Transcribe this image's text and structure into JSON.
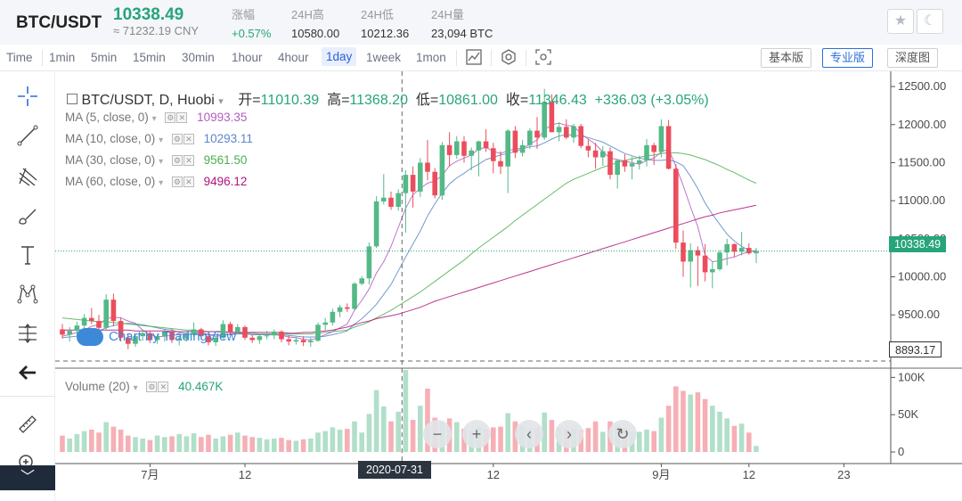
{
  "header": {
    "pair": "BTC/USDT",
    "price": "10338.49",
    "cny": "≈ 71232.19 CNY",
    "stats": [
      {
        "label": "涨幅",
        "value": "+0.57%",
        "up": true
      },
      {
        "label": "24H高",
        "value": "10580.00",
        "up": false
      },
      {
        "label": "24H低",
        "value": "10212.36",
        "up": false
      },
      {
        "label": "24H量",
        "value": "23,094 BTC",
        "up": false
      }
    ],
    "favorite_icon": "star-icon",
    "theme_icon": "moon-icon"
  },
  "toolbar": {
    "timeframes": [
      "Time",
      "1min",
      "5min",
      "15min",
      "30min",
      "1hour",
      "4hour",
      "1day",
      "1week",
      "1mon"
    ],
    "active_timeframe": "1day",
    "icons": [
      "indicators-icon",
      "settings-icon",
      "screenshot-icon"
    ],
    "views": [
      "基本版",
      "专业版",
      "深度图"
    ],
    "active_view": "专业版"
  },
  "tools": [
    "crosshair-icon",
    "trend-line-icon",
    "pitchfork-icon",
    "brush-icon",
    "text-icon",
    "pattern-icon",
    "measure-icon",
    "back-arrow-icon",
    "ruler-icon",
    "zoom-icon"
  ],
  "legend": {
    "title": "BTC/USDT, D, Huobi",
    "open_label": "开=",
    "open": "11010.39",
    "high_label": "高=",
    "high": "11368.20",
    "low_label": "低=",
    "low": "10861.00",
    "close_label": "收=",
    "close": "11346.43",
    "change": "+336.03 (+3.05%)",
    "ma": [
      {
        "label": "MA (5, close, 0)",
        "value": "10993.35",
        "color": "#b05fc0"
      },
      {
        "label": "MA (10, close, 0)",
        "value": "10293.11",
        "color": "#5b86c8"
      },
      {
        "label": "MA (30, close, 0)",
        "value": "9561.50",
        "color": "#4caf50"
      },
      {
        "label": "MA (60, close, 0)",
        "value": "9496.12",
        "color": "#b0147a"
      }
    ],
    "volume_label": "Volume (20)",
    "volume_value": "40.467K"
  },
  "watermark": "Chart by TradingView",
  "last_price_tag": "10338.49",
  "crosshair_price_tag": "8893.17",
  "crosshair_date_tag": "2020-07-31",
  "nav_buttons": [
    "zoom-out-icon",
    "zoom-in-icon",
    "scroll-left-icon",
    "scroll-right-icon",
    "reset-icon"
  ],
  "colors": {
    "up": "#53b987",
    "down": "#eb4d5c",
    "accent": "#2a6fdb"
  },
  "chart_data": {
    "type": "candlestick",
    "price_axis": {
      "ticks": [
        12500,
        12000,
        11500,
        11000,
        10500,
        10000,
        9500
      ],
      "labels": [
        "12500.00",
        "12000.00",
        "11500.00",
        "11000.00",
        "10500.00",
        "10000.00",
        "9500.00"
      ],
      "range": [
        8800,
        12700
      ]
    },
    "volume_axis": {
      "ticks": [
        100,
        50,
        0
      ],
      "labels": [
        "100K",
        "50K",
        "0"
      ],
      "range": [
        0,
        110
      ]
    },
    "date_axis": {
      "labels": [
        "7月",
        "12",
        "12",
        "9月",
        "12",
        "23"
      ]
    },
    "candles": [
      [
        9310,
        9380,
        9190,
        9240,
        22
      ],
      [
        9240,
        9340,
        9150,
        9290,
        18
      ],
      [
        9290,
        9410,
        9220,
        9360,
        24
      ],
      [
        9360,
        9510,
        9290,
        9460,
        28
      ],
      [
        9460,
        9590,
        9380,
        9420,
        30
      ],
      [
        9420,
        9500,
        9280,
        9330,
        26
      ],
      [
        9330,
        9770,
        9300,
        9700,
        40
      ],
      [
        9700,
        9780,
        9350,
        9420,
        34
      ],
      [
        9420,
        9470,
        9150,
        9200,
        30
      ],
      [
        9200,
        9260,
        9050,
        9120,
        22
      ],
      [
        9120,
        9250,
        9080,
        9220,
        20
      ],
      [
        9220,
        9300,
        9160,
        9260,
        18
      ],
      [
        9260,
        9290,
        9130,
        9170,
        16
      ],
      [
        9170,
        9250,
        9120,
        9220,
        22
      ],
      [
        9220,
        9320,
        9150,
        9280,
        20
      ],
      [
        9280,
        9320,
        9130,
        9170,
        21
      ],
      [
        9170,
        9230,
        9100,
        9190,
        24
      ],
      [
        9190,
        9280,
        9150,
        9240,
        21
      ],
      [
        9240,
        9400,
        9210,
        9310,
        25
      ],
      [
        9310,
        9330,
        9180,
        9220,
        20
      ],
      [
        9220,
        9260,
        9100,
        9140,
        23
      ],
      [
        9140,
        9220,
        9090,
        9200,
        18
      ],
      [
        9200,
        9430,
        9180,
        9380,
        21
      ],
      [
        9380,
        9410,
        9230,
        9270,
        23
      ],
      [
        9270,
        9380,
        9250,
        9340,
        26
      ],
      [
        9340,
        9360,
        9170,
        9200,
        22
      ],
      [
        9200,
        9240,
        9130,
        9170,
        20
      ],
      [
        9170,
        9250,
        9120,
        9220,
        19
      ],
      [
        9220,
        9290,
        9180,
        9230,
        17
      ],
      [
        9230,
        9310,
        9180,
        9280,
        18
      ],
      [
        9280,
        9300,
        9140,
        9180,
        19
      ],
      [
        9180,
        9230,
        9100,
        9150,
        16
      ],
      [
        9150,
        9210,
        9110,
        9170,
        15
      ],
      [
        9170,
        9220,
        9090,
        9140,
        17
      ],
      [
        9140,
        9200,
        9080,
        9160,
        18
      ],
      [
        9160,
        9400,
        9150,
        9370,
        26
      ],
      [
        9370,
        9460,
        9300,
        9400,
        28
      ],
      [
        9400,
        9580,
        9360,
        9540,
        33
      ],
      [
        9540,
        9630,
        9470,
        9600,
        30
      ],
      [
        9600,
        9650,
        9540,
        9580,
        31
      ],
      [
        9580,
        9930,
        9560,
        9910,
        41
      ],
      [
        9910,
        10010,
        9890,
        9980,
        26
      ],
      [
        9980,
        10450,
        9900,
        10400,
        51
      ],
      [
        10400,
        11060,
        10380,
        10990,
        83
      ],
      [
        10990,
        11350,
        10950,
        11040,
        61
      ],
      [
        11040,
        11120,
        10880,
        10920,
        41
      ],
      [
        10920,
        11150,
        10870,
        11100,
        54
      ],
      [
        11100,
        11400,
        10580,
        11340,
        110
      ],
      [
        11340,
        11450,
        10910,
        11120,
        43
      ],
      [
        11120,
        11560,
        11050,
        11500,
        62
      ],
      [
        11500,
        11800,
        11270,
        11380,
        85
      ],
      [
        11380,
        11430,
        11030,
        11070,
        46
      ],
      [
        11070,
        11770,
        11010,
        11730,
        41
      ],
      [
        11730,
        11900,
        11450,
        11600,
        45
      ],
      [
        11600,
        11850,
        11550,
        11780,
        40
      ],
      [
        11780,
        11850,
        11500,
        11590,
        31
      ],
      [
        11590,
        11700,
        11400,
        11660,
        28
      ],
      [
        11660,
        11790,
        11320,
        11780,
        33
      ],
      [
        11780,
        11940,
        11640,
        11690,
        31
      ],
      [
        11690,
        11760,
        11360,
        11520,
        33
      ],
      [
        11520,
        11650,
        11350,
        11450,
        34
      ],
      [
        11450,
        11940,
        11100,
        11920,
        52
      ],
      [
        11920,
        11980,
        11560,
        11630,
        41
      ],
      [
        11630,
        11800,
        11580,
        11730,
        35
      ],
      [
        11730,
        11950,
        11680,
        11920,
        31
      ],
      [
        11920,
        12100,
        11680,
        11830,
        33
      ],
      [
        11830,
        12470,
        11800,
        12300,
        53
      ],
      [
        12300,
        12400,
        11920,
        11900,
        43
      ],
      [
        11900,
        12030,
        11780,
        11970,
        33
      ],
      [
        11970,
        12070,
        11810,
        11830,
        31
      ],
      [
        11830,
        12010,
        11760,
        11980,
        31
      ],
      [
        11980,
        12010,
        11690,
        11720,
        30
      ],
      [
        11720,
        11810,
        11570,
        11660,
        32
      ],
      [
        11660,
        11760,
        11420,
        11570,
        41
      ],
      [
        11570,
        11720,
        11460,
        11650,
        27
      ],
      [
        11650,
        11700,
        11280,
        11340,
        41
      ],
      [
        11340,
        11550,
        11160,
        11530,
        36
      ],
      [
        11530,
        11610,
        11380,
        11450,
        32
      ],
      [
        11450,
        11580,
        11280,
        11490,
        28
      ],
      [
        11490,
        11590,
        11410,
        11530,
        27
      ],
      [
        11530,
        11810,
        11450,
        11730,
        30
      ],
      [
        11730,
        11760,
        11470,
        11640,
        28
      ],
      [
        11640,
        12070,
        11570,
        11980,
        46
      ],
      [
        11980,
        12060,
        11410,
        11420,
        62
      ],
      [
        11420,
        11480,
        10370,
        10450,
        88
      ],
      [
        10450,
        10610,
        10000,
        10200,
        82
      ],
      [
        10200,
        10440,
        9860,
        10350,
        77
      ],
      [
        10350,
        10400,
        9880,
        10280,
        80
      ],
      [
        10280,
        10430,
        9940,
        10060,
        71
      ],
      [
        10060,
        10200,
        9850,
        10100,
        62
      ],
      [
        10100,
        10350,
        10080,
        10320,
        54
      ],
      [
        10320,
        10500,
        10150,
        10430,
        45
      ],
      [
        10430,
        10440,
        10260,
        10330,
        35
      ],
      [
        10330,
        10590,
        10280,
        10380,
        38
      ],
      [
        10380,
        10440,
        10290,
        10310,
        26
      ],
      [
        10310,
        10380,
        10180,
        10338,
        8
      ]
    ],
    "ma": [
      {
        "name": "MA (5, close, 0)",
        "values": [
          9220,
          9240,
          9270,
          9300,
          9350,
          9370,
          9450,
          9470,
          9460,
          9420,
          9390,
          9300,
          9240,
          9210,
          9220,
          9230,
          9240,
          9240,
          9260,
          9270,
          9240,
          9220,
          9230,
          9250,
          9260,
          9250,
          9240,
          9240,
          9240,
          9240,
          9230,
          9210,
          9200,
          9180,
          9170,
          9200,
          9240,
          9280,
          9330,
          9380,
          9560,
          9690,
          9840,
          10050,
          10200,
          10400,
          10650,
          10900,
          11080,
          11160,
          11230,
          11260,
          11330,
          11460,
          11520,
          11560,
          11600,
          11680,
          11700,
          11650,
          11620,
          11660,
          11680,
          11690,
          11740,
          11800,
          11930,
          12000,
          12020,
          11990,
          11980,
          11880,
          11810,
          11740,
          11640,
          11560,
          11540,
          11520,
          11500,
          11480,
          11530,
          11560,
          11640,
          11680,
          11450,
          11200,
          10920,
          10660,
          10280,
          10200,
          10210,
          10240,
          10260,
          10300,
          10330,
          10350
        ]
      },
      {
        "name": "MA (10, close, 0)",
        "values": [
          9200,
          9210,
          9220,
          9240,
          9270,
          9290,
          9330,
          9360,
          9380,
          9390,
          9380,
          9370,
          9350,
          9330,
          9310,
          9300,
          9270,
          9250,
          9240,
          9240,
          9240,
          9240,
          9240,
          9240,
          9250,
          9250,
          9240,
          9240,
          9240,
          9240,
          9240,
          9230,
          9220,
          9210,
          9210,
          9210,
          9220,
          9240,
          9260,
          9290,
          9380,
          9450,
          9540,
          9640,
          9770,
          9900,
          10080,
          10260,
          10430,
          10600,
          10800,
          10960,
          11100,
          11220,
          11300,
          11360,
          11430,
          11480,
          11540,
          11570,
          11600,
          11620,
          11650,
          11680,
          11710,
          11720,
          11760,
          11810,
          11850,
          11870,
          11860,
          11850,
          11830,
          11800,
          11770,
          11720,
          11670,
          11620,
          11590,
          11560,
          11540,
          11530,
          11530,
          11540,
          11510,
          11460,
          11320,
          11160,
          10970,
          10820,
          10690,
          10560,
          10470,
          10400,
          10350,
          10320
        ]
      },
      {
        "name": "MA (30, close, 0)",
        "values": [
          9460,
          9450,
          9440,
          9430,
          9420,
          9410,
          9410,
          9400,
          9390,
          9380,
          9370,
          9360,
          9350,
          9340,
          9330,
          9320,
          9310,
          9300,
          9300,
          9290,
          9280,
          9280,
          9270,
          9270,
          9270,
          9260,
          9260,
          9250,
          9250,
          9250,
          9250,
          9250,
          9250,
          9250,
          9250,
          9260,
          9270,
          9280,
          9290,
          9300,
          9340,
          9370,
          9410,
          9460,
          9510,
          9560,
          9620,
          9680,
          9740,
          9800,
          9870,
          9940,
          10010,
          10080,
          10150,
          10220,
          10300,
          10380,
          10450,
          10520,
          10590,
          10660,
          10740,
          10810,
          10880,
          10950,
          11020,
          11090,
          11160,
          11230,
          11280,
          11320,
          11360,
          11400,
          11440,
          11470,
          11500,
          11530,
          11550,
          11570,
          11590,
          11600,
          11620,
          11630,
          11630,
          11620,
          11600,
          11570,
          11540,
          11500,
          11460,
          11410,
          11370,
          11320,
          11270,
          11230
        ]
      },
      {
        "name": "MA (60, close, 0)",
        "values": [
          9300,
          9300,
          9300,
          9300,
          9300,
          9300,
          9300,
          9300,
          9300,
          9300,
          9290,
          9290,
          9290,
          9290,
          9290,
          9280,
          9280,
          9280,
          9280,
          9280,
          9280,
          9280,
          9280,
          9270,
          9270,
          9270,
          9270,
          9270,
          9270,
          9270,
          9270,
          9260,
          9260,
          9270,
          9270,
          9280,
          9290,
          9300,
          9320,
          9340,
          9370,
          9400,
          9420,
          9450,
          9470,
          9490,
          9510,
          9540,
          9570,
          9600,
          9640,
          9680,
          9710,
          9740,
          9770,
          9800,
          9830,
          9860,
          9890,
          9920,
          9950,
          9980,
          10010,
          10040,
          10070,
          10100,
          10130,
          10160,
          10190,
          10220,
          10250,
          10280,
          10310,
          10340,
          10370,
          10400,
          10430,
          10460,
          10490,
          10520,
          10550,
          10580,
          10610,
          10640,
          10670,
          10700,
          10730,
          10760,
          10790,
          10810,
          10840,
          10860,
          10880,
          10900,
          10920,
          10940
        ]
      }
    ]
  }
}
